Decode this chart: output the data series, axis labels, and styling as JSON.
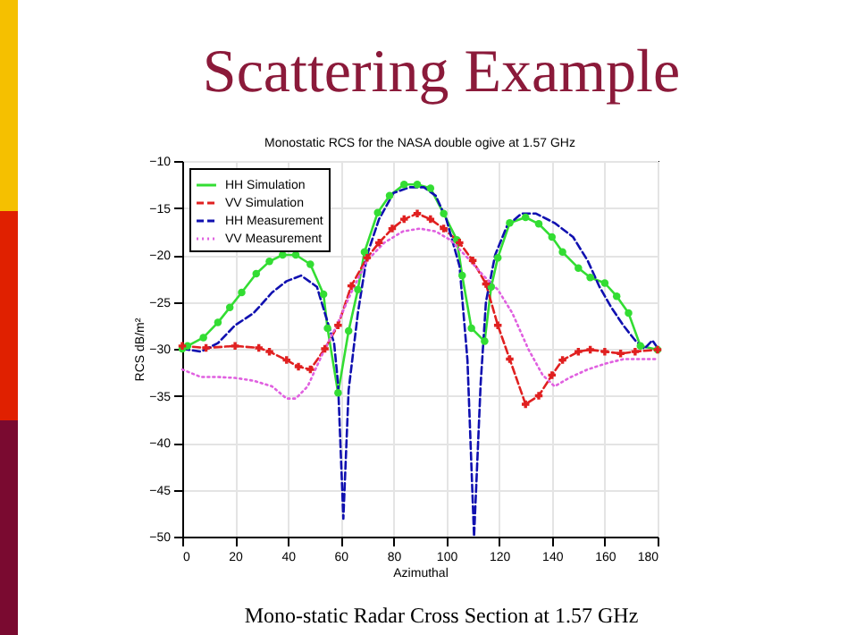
{
  "chart_data": {
    "type": "line",
    "title": "Scattering Example",
    "subtitle": "Monostatic RCS for the NASA double ogive at 1.57 GHz",
    "xlabel": "Azimuthal",
    "ylabel": "RCS dB/m²",
    "annotations": [
      "Mono-static Radar Cross Section at 1.57 GHz"
    ],
    "xlim": [
      0,
      180
    ],
    "xticks": [
      0,
      20,
      40,
      60,
      80,
      100,
      120,
      140,
      160,
      180
    ],
    "ylim": [
      -50,
      -10
    ],
    "yticks": [
      -50,
      -45,
      -40,
      -35,
      -30,
      -25,
      -20,
      -15,
      -10
    ],
    "grid": true,
    "legend": "top left",
    "series": [
      {
        "name": "HH Simulation",
        "color": "#33dd33",
        "marker": "circle",
        "line_style": "solid",
        "x": [
          0,
          2,
          8,
          13.5,
          18,
          22.5,
          28,
          33,
          38,
          43,
          48.5,
          53.5,
          55,
          59,
          63,
          66.5,
          69,
          74,
          78.5,
          84,
          89,
          94,
          99,
          104,
          106,
          109.5,
          114.5,
          117,
          119.5,
          124,
          130,
          135,
          140,
          144,
          150,
          154.5,
          160,
          164.5,
          169,
          173.5,
          180
        ],
        "values": [
          -30,
          -29.7,
          -28.8,
          -27.2,
          -25.6,
          -24,
          -22,
          -20.7,
          -20,
          -20,
          -21,
          -24.2,
          -27.8,
          -34.7,
          -28.1,
          -23.7,
          -19.7,
          -15.5,
          -13.7,
          -12.5,
          -12.5,
          -12.9,
          -15.6,
          -18.4,
          -22.2,
          -27.8,
          -29.2,
          -23.4,
          -20.3,
          -16.6,
          -16,
          -16.7,
          -18.1,
          -19.7,
          -21.4,
          -22.4,
          -23,
          -24.4,
          -26.2,
          -29.7,
          -30.1
        ]
      },
      {
        "name": "VV Simulation",
        "color": "#e02020",
        "marker": "cross",
        "line_style": "dashed",
        "x": [
          0,
          9,
          20,
          29,
          33,
          39.5,
          44,
          48.5,
          54,
          59,
          64,
          70,
          74.5,
          79.5,
          84,
          89,
          94,
          99,
          105,
          110,
          115,
          119.5,
          124,
          130,
          135,
          140,
          144,
          150,
          154.5,
          160,
          166,
          171.5,
          180
        ],
        "values": [
          -29.7,
          -29.9,
          -29.7,
          -29.9,
          -30.3,
          -31.2,
          -31.9,
          -32.2,
          -30,
          -27.5,
          -23.3,
          -20.3,
          -18.7,
          -17.2,
          -16.2,
          -15.6,
          -16.2,
          -17.2,
          -18.7,
          -20.6,
          -23.1,
          -27.5,
          -31.1,
          -35.9,
          -35,
          -32.8,
          -31.2,
          -30.3,
          -30.1,
          -30.3,
          -30.5,
          -30.3,
          -30.1
        ]
      },
      {
        "name": "HH Measurement",
        "color": "#1010b0",
        "marker": "none",
        "line_style": "dashed",
        "x": [
          0,
          7,
          13.5,
          20,
          27,
          34,
          39.5,
          45,
          51,
          54,
          57.5,
          59,
          61,
          63,
          66.5,
          70,
          74.5,
          80,
          86,
          91.5,
          96,
          100,
          105,
          108,
          110.5,
          113,
          115,
          118.5,
          123,
          128.5,
          134,
          141,
          148,
          153.5,
          158,
          162.5,
          167,
          171.5,
          175,
          178,
          180
        ],
        "values": [
          -30,
          -30.3,
          -29.4,
          -27.5,
          -26.2,
          -24,
          -22.8,
          -22.2,
          -23.4,
          -26.2,
          -29.4,
          -33.7,
          -48.1,
          -34.4,
          -26.2,
          -20,
          -16.2,
          -13.4,
          -12.8,
          -12.8,
          -13.7,
          -16.2,
          -21.2,
          -31.2,
          -50,
          -33.7,
          -25,
          -20,
          -16.9,
          -15.6,
          -15.6,
          -16.6,
          -18.1,
          -20.6,
          -23.4,
          -25.6,
          -27.5,
          -29.1,
          -30,
          -29.1,
          -29.9
        ]
      },
      {
        "name": "VV Measurement",
        "color": "#e060e0",
        "marker": "none",
        "line_style": "dotted",
        "x": [
          0,
          7,
          13.5,
          20,
          27,
          34,
          39.5,
          43,
          47.5,
          53,
          58.5,
          64,
          70,
          76.5,
          83.5,
          90,
          96,
          101.5,
          108,
          114,
          119.5,
          125,
          131,
          136.5,
          141,
          146.5,
          153.5,
          160,
          167,
          173.5,
          180
        ],
        "values": [
          -32.2,
          -33,
          -33,
          -33.1,
          -33.4,
          -34,
          -35.3,
          -35.3,
          -34,
          -30.6,
          -27.5,
          -24,
          -20.6,
          -18.7,
          -17.5,
          -17.2,
          -17.5,
          -18.4,
          -20.3,
          -22.2,
          -23.7,
          -26.2,
          -30,
          -32.8,
          -34,
          -33.1,
          -32.2,
          -31.6,
          -31.1,
          -31.1,
          -31.1
        ]
      }
    ]
  }
}
